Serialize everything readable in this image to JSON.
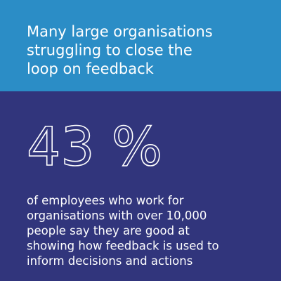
{
  "header": {
    "title_lines": [
      "Many large organisations",
      "struggling to close the",
      "loop on feedback"
    ]
  },
  "stat": "43 %",
  "body_lines": [
    "of employees who work for",
    "organisations with over 10,000",
    "people say they are good at",
    "showing how feedback is used to",
    "inform decisions and actions"
  ]
}
